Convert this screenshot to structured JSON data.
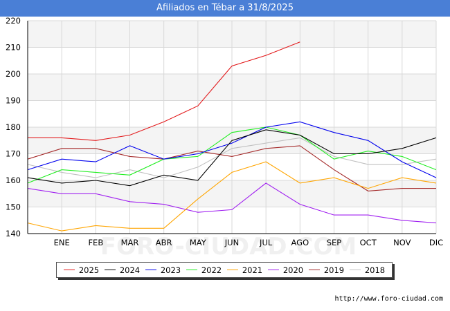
{
  "chart_data": {
    "type": "line",
    "title": "Afiliados en Tébar a 31/8/2025",
    "categories": [
      "",
      "ENE",
      "FEB",
      "MAR",
      "ABR",
      "MAY",
      "JUN",
      "JUL",
      "AGO",
      "SEP",
      "OCT",
      "NOV",
      "DIC"
    ],
    "ylim": [
      140,
      220
    ],
    "yticks": [
      140,
      150,
      160,
      170,
      180,
      190,
      200,
      210,
      220
    ],
    "grid": true,
    "legend_position": "bottom",
    "series": [
      {
        "name": "2025",
        "color": "#e31a1c",
        "values": [
          176,
          176,
          175,
          177,
          182,
          188,
          203,
          207,
          212,
          null,
          null,
          null,
          null
        ]
      },
      {
        "name": "2024",
        "color": "#000000",
        "values": [
          161,
          159,
          160,
          158,
          162,
          160,
          175,
          179,
          177,
          170,
          170,
          172,
          176
        ]
      },
      {
        "name": "2023",
        "color": "#0000ee",
        "values": [
          164,
          168,
          167,
          173,
          168,
          170,
          174,
          180,
          182,
          178,
          175,
          167,
          161
        ]
      },
      {
        "name": "2022",
        "color": "#22ee22",
        "values": [
          159,
          164,
          163,
          162,
          168,
          169,
          178,
          180,
          177,
          168,
          171,
          169,
          164
        ]
      },
      {
        "name": "2021",
        "color": "#ffa500",
        "values": [
          144,
          141,
          143,
          142,
          142,
          153,
          163,
          167,
          159,
          161,
          157,
          161,
          159
        ]
      },
      {
        "name": "2020",
        "color": "#a020f0",
        "values": [
          157,
          155,
          155,
          152,
          151,
          148,
          149,
          159,
          151,
          147,
          147,
          145,
          144
        ]
      },
      {
        "name": "2019",
        "color": "#a52a2a",
        "values": [
          168,
          172,
          172,
          169,
          168,
          171,
          169,
          172,
          173,
          164,
          156,
          157,
          157
        ]
      },
      {
        "name": "2018",
        "color": "#c0c0c0",
        "values": [
          166,
          163,
          161,
          164,
          161,
          165,
          172,
          174,
          176,
          169,
          166,
          166,
          168
        ]
      }
    ],
    "watermark": "FORO-CIUDAD.COM"
  },
  "source": "http://www.foro-ciudad.com"
}
